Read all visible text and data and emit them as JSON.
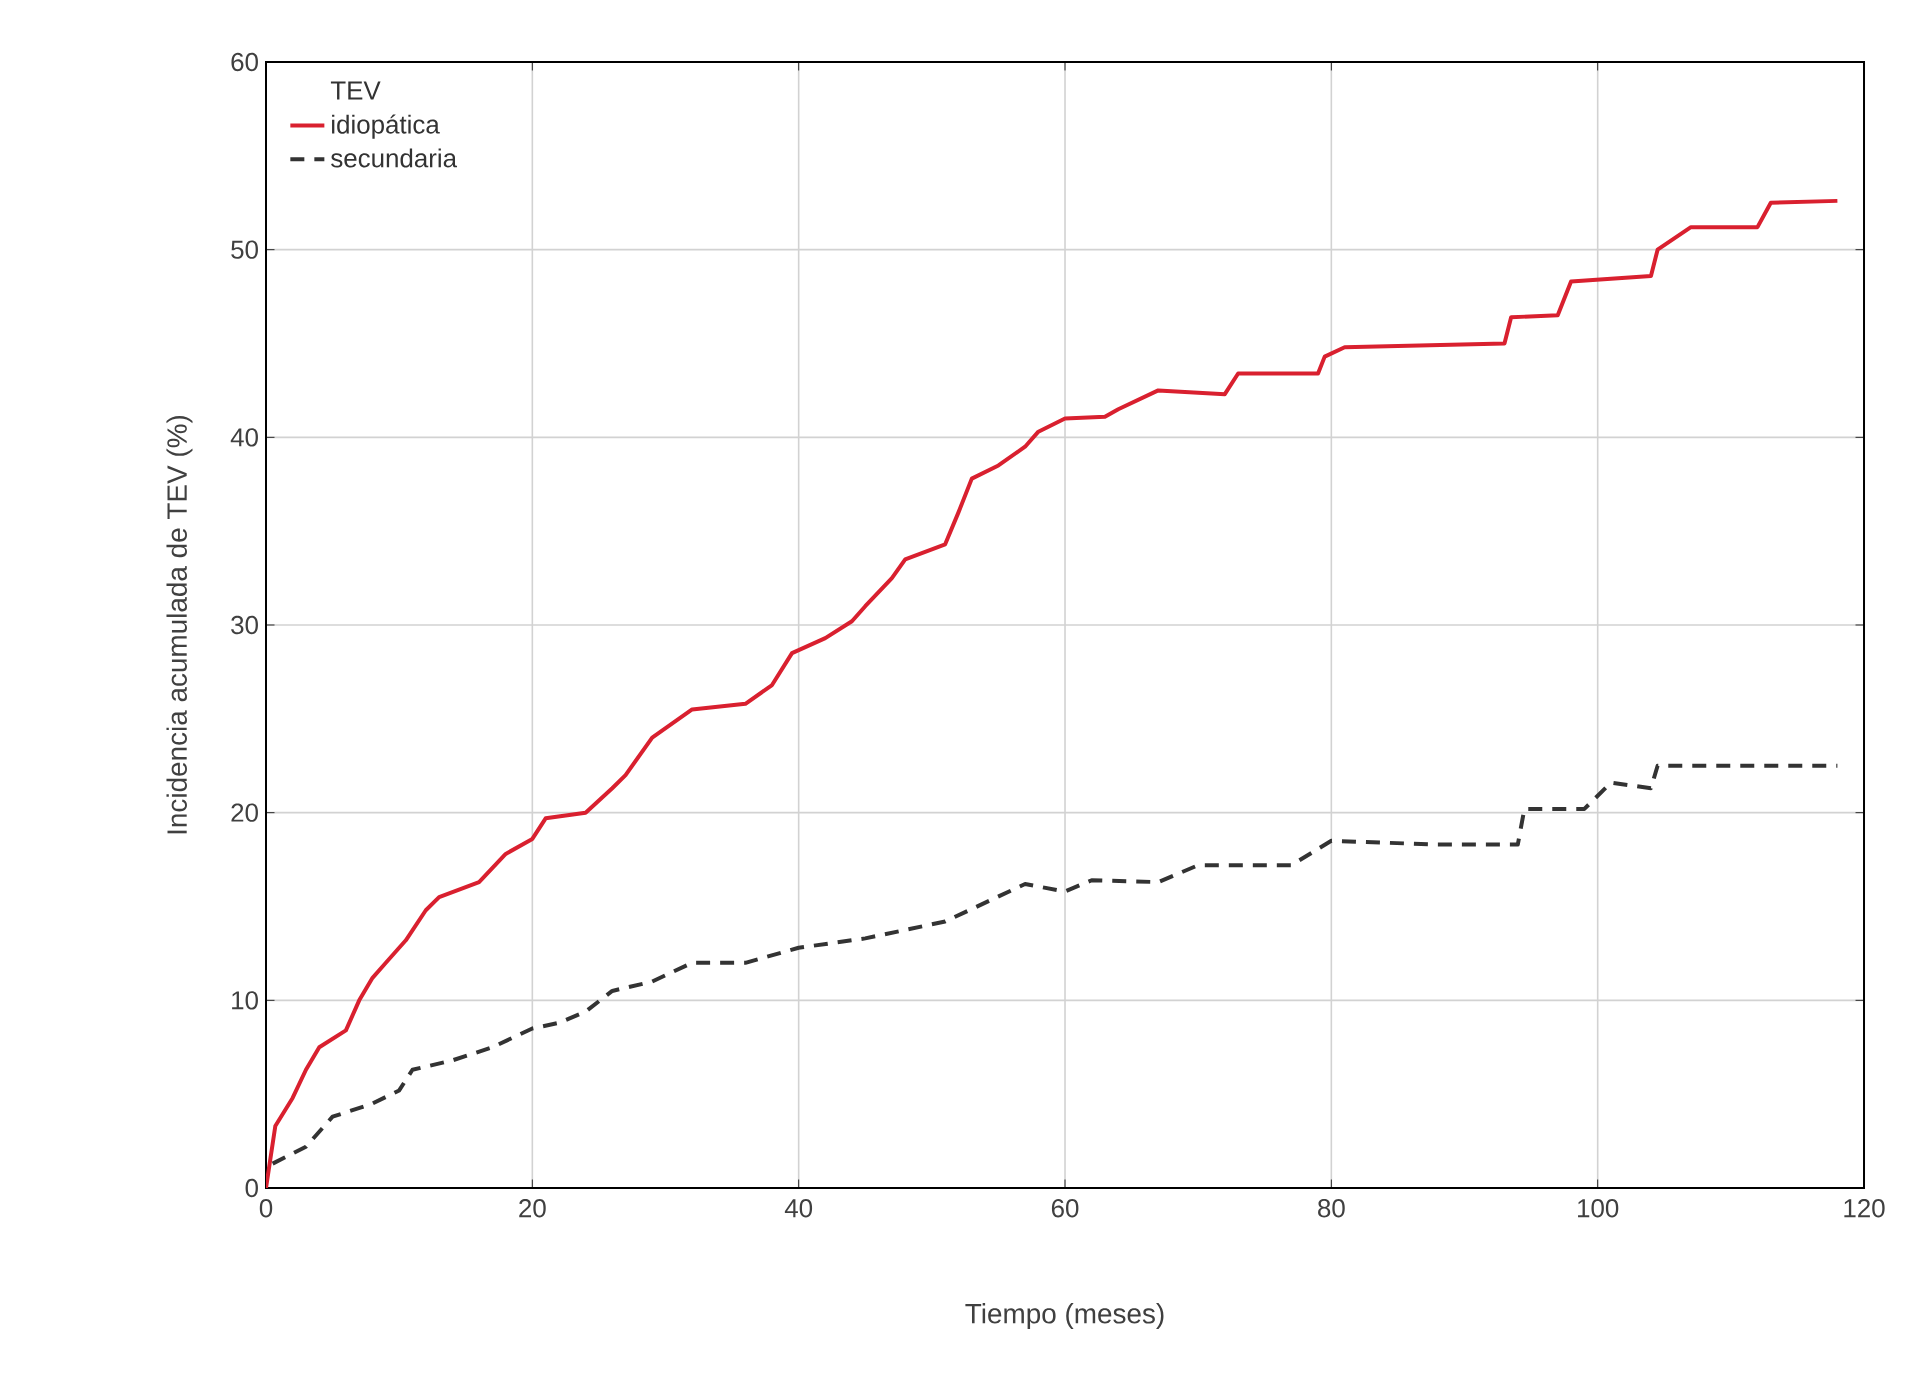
{
  "chart_data": {
    "type": "line",
    "xlabel": "Tiempo (meses)",
    "ylabel": "Incidencia acumulada de TEV (%)",
    "legend_title": "TEV",
    "legend": "top left",
    "grid": true,
    "xlim": [
      0,
      120
    ],
    "ylim": [
      0,
      60
    ],
    "xticks": [
      0,
      20,
      40,
      60,
      80,
      100,
      120
    ],
    "yticks": [
      0,
      10,
      20,
      30,
      40,
      50,
      60
    ],
    "series": [
      {
        "name": "idiopática",
        "color": "#d9202f",
        "line_style": "solid",
        "x": [
          0,
          0.7,
          2,
          3,
          4,
          6,
          7,
          8,
          9,
          10.5,
          12,
          13,
          16,
          18,
          20,
          21,
          24,
          26,
          27,
          29,
          32,
          36,
          38,
          39.5,
          42,
          44,
          45,
          47,
          48,
          51,
          52,
          53,
          55,
          57,
          58,
          60,
          63,
          64,
          67,
          72,
          73,
          79,
          79.5,
          81,
          93,
          93.5,
          97,
          98,
          104,
          104.5,
          107,
          112,
          113,
          118
        ],
        "values": [
          0,
          3.3,
          4.8,
          6.3,
          7.5,
          8.4,
          10,
          11.2,
          12,
          13.2,
          14.8,
          15.5,
          16.3,
          17.8,
          18.6,
          19.7,
          20,
          21.3,
          22,
          24,
          25.5,
          25.8,
          26.8,
          28.5,
          29.3,
          30.2,
          31,
          32.5,
          33.5,
          34.3,
          36,
          37.8,
          38.5,
          39.5,
          40.3,
          41,
          41.1,
          41.5,
          42.5,
          42.3,
          43.4,
          43.4,
          44.3,
          44.8,
          45,
          46.4,
          46.5,
          48.3,
          48.6,
          50,
          51.2,
          51.2,
          52.5,
          52.6
        ]
      },
      {
        "name": "secundaria",
        "color": "#333333",
        "line_style": "dashed",
        "x": [
          0.5,
          3,
          5,
          8,
          10,
          11,
          14,
          17,
          20,
          22,
          24,
          26,
          29,
          32,
          36,
          40,
          45,
          51,
          57,
          60,
          62,
          67,
          70,
          77,
          80,
          88,
          94,
          94.5,
          99,
          101,
          104,
          104.5,
          118
        ],
        "values": [
          1.3,
          2.2,
          3.8,
          4.5,
          5.2,
          6.3,
          6.8,
          7.5,
          8.5,
          8.8,
          9.4,
          10.5,
          11,
          12,
          12,
          12.8,
          13.3,
          14.2,
          16.2,
          15.8,
          16.4,
          16.3,
          17.2,
          17.2,
          18.5,
          18.3,
          18.3,
          20.2,
          20.2,
          21.6,
          21.3,
          22.5,
          22.5
        ]
      }
    ]
  }
}
